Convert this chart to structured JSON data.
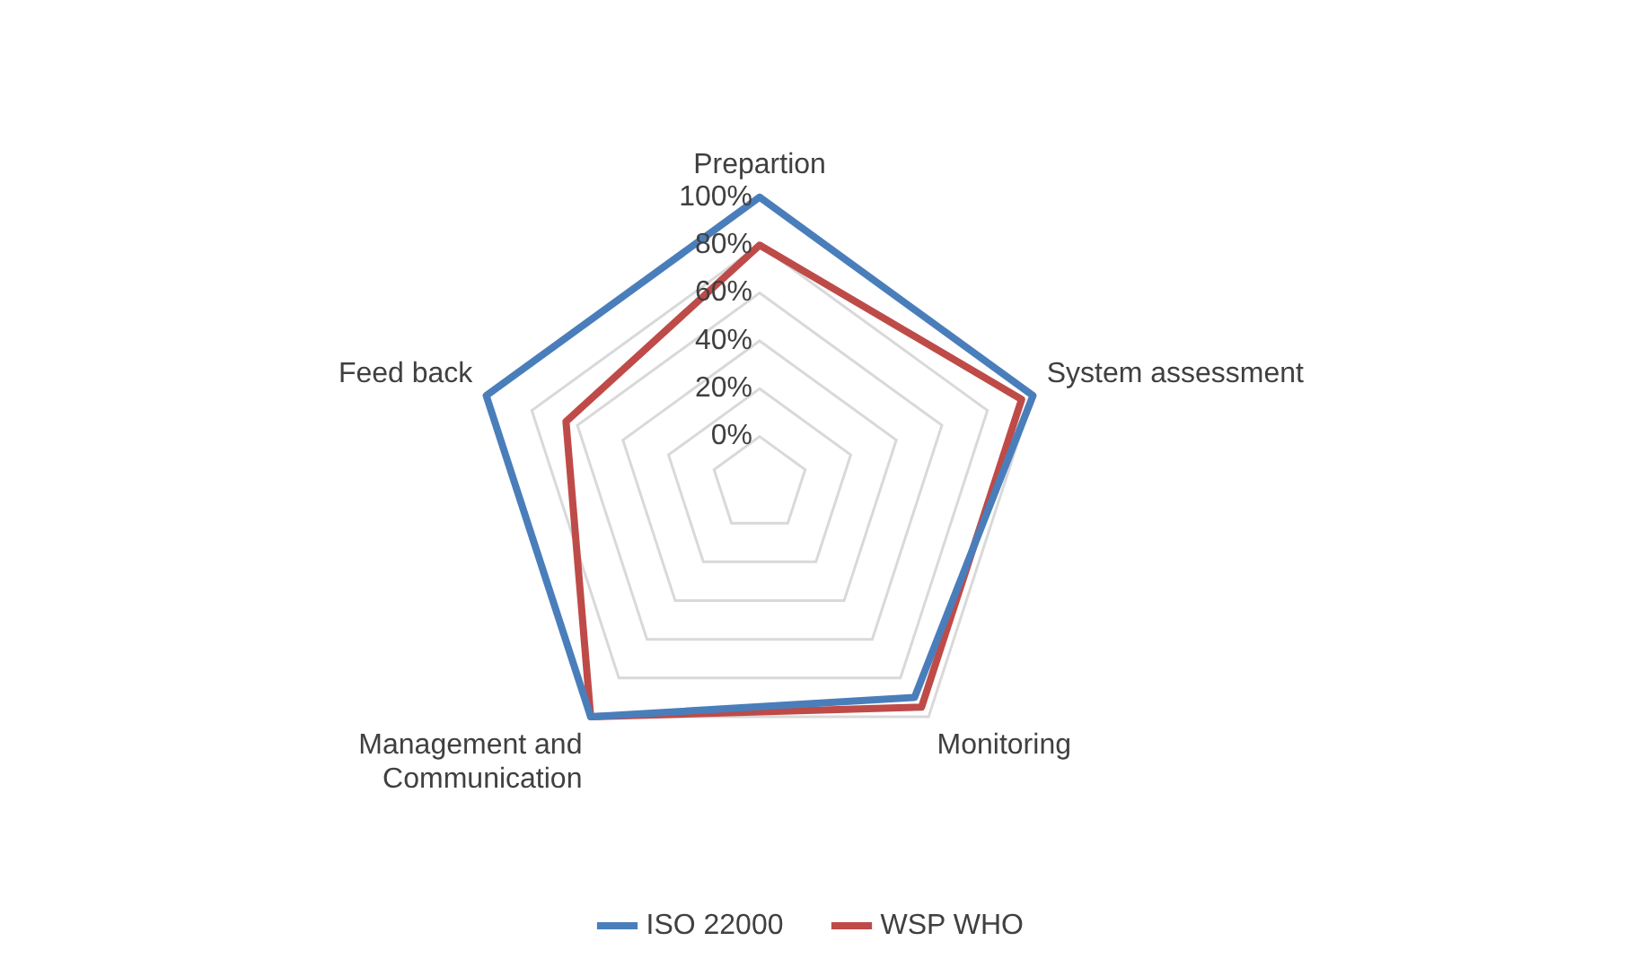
{
  "chart_data": {
    "type": "radar",
    "categories": [
      "Prepartion",
      "System assessment",
      "Monitoring",
      "Management and Communication",
      "Feed back"
    ],
    "series": [
      {
        "name": "ISO 22000",
        "color": "#4a7ebb",
        "values": [
          100,
          100,
          90,
          100,
          100
        ]
      },
      {
        "name": "WSP WHO",
        "color": "#be4b48",
        "values": [
          80,
          95,
          95,
          100,
          65
        ]
      }
    ],
    "ylim": [
      -20,
      100
    ],
    "yticks": [
      {
        "value": 0,
        "label": "0%"
      },
      {
        "value": 20,
        "label": "20%"
      },
      {
        "value": 40,
        "label": "40%"
      },
      {
        "value": 60,
        "label": "60%"
      },
      {
        "value": 80,
        "label": "80%"
      },
      {
        "value": 100,
        "label": "100%"
      }
    ],
    "grid": true,
    "legend": "bottom",
    "marker": "none"
  }
}
